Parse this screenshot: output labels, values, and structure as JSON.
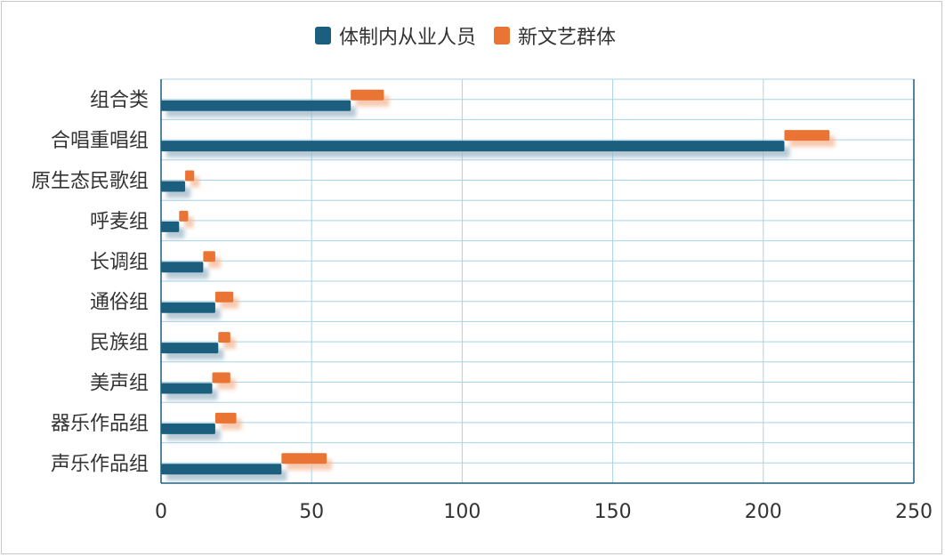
{
  "chart_data": {
    "type": "bar",
    "orientation": "horizontal",
    "title": "",
    "xlabel": "",
    "ylabel": "",
    "xlim": [
      0,
      250
    ],
    "xticks": [
      0,
      50,
      100,
      150,
      200,
      250
    ],
    "grid": true,
    "legend_position": "top",
    "categories": [
      "组合类",
      "合唱重唱组",
      "原生态民歌组",
      "呼麦组",
      "长调组",
      "通俗组",
      "民族组",
      "美声组",
      "器乐作品组",
      "声乐作品组"
    ],
    "series": [
      {
        "name": "体制内从业人员",
        "color": "#1b5e7e",
        "values": [
          63,
          207,
          8,
          6,
          14,
          18,
          19,
          17,
          18,
          40
        ]
      },
      {
        "name": "新文艺群体",
        "color": "#ea7434",
        "values": [
          11,
          15,
          3,
          3,
          4,
          6,
          4,
          6,
          7,
          15
        ]
      }
    ]
  }
}
